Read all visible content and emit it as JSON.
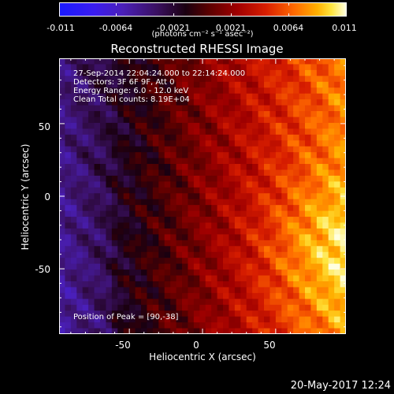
{
  "colorbar": {
    "tick_labels": [
      "-0.011",
      "-0.0064",
      "-0.0021",
      "0.0021",
      "0.0064",
      "0.011"
    ],
    "units": "(photons cm⁻² s⁻¹ asec⁻²)",
    "colors": [
      "#1a1aff",
      "#4a1fb8",
      "#1a0010",
      "#a00000",
      "#ff6a00",
      "#ffe640",
      "#ffffe0"
    ]
  },
  "title": "Reconstructed RHESSI Image",
  "annotations": {
    "time_range": "27-Sep-2014 22:04:24.000 to 22:14:24.000",
    "detectors": "Detectors: 3F 6F 9F, Att 0",
    "energy": "Energy Range: 6.0 - 12.0 keV",
    "clean": "Clean    Total counts: 8.19E+04",
    "peak": "Position of Peak = [90,-38]"
  },
  "chart_data": {
    "type": "heatmap",
    "title": "Reconstructed RHESSI Image",
    "xlabel": "Heliocentric X (arcsec)",
    "ylabel": "Heliocentric Y (arcsec)",
    "xlim": [
      -98,
      98
    ],
    "ylim": [
      -95,
      95
    ],
    "x_ticks": [
      "-50",
      "0",
      "50"
    ],
    "y_ticks": [
      "50",
      "0",
      "-50"
    ],
    "x_tick_values": [
      -50,
      0,
      50
    ],
    "y_tick_values": [
      50,
      0,
      -50
    ],
    "zlim": [
      -0.011,
      0.011
    ],
    "peak_position": [
      90,
      -38
    ]
  },
  "footer": "20-May-2017 12:24"
}
